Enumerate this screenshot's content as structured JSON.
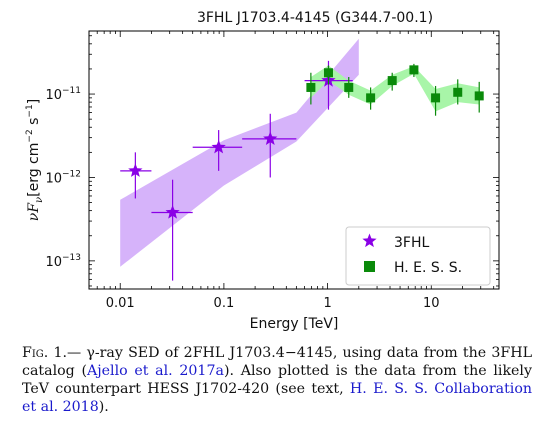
{
  "chart_data": {
    "type": "scatter",
    "title": "3FHL J1703.4-4145 (G344.7-00.1)",
    "xlabel": "Energy [TeV]",
    "ylabel_main": "νF",
    "ylabel_sub": "ν",
    "ylabel_units": "[erg cm",
    "ylabel_exp1": "−2",
    "ylabel_mid": " s",
    "ylabel_exp2": "−1",
    "ylabel_end": "]",
    "xscale": "log",
    "yscale": "log",
    "xlim": [
      0.005,
      45
    ],
    "ylim": [
      4.6e-14,
      5.7e-11
    ],
    "xticks": [
      {
        "value": 0.01,
        "label": "0.01"
      },
      {
        "value": 0.1,
        "label": "0.1"
      },
      {
        "value": 1,
        "label": "1"
      },
      {
        "value": 10,
        "label": "10"
      }
    ],
    "yticks": [
      {
        "value": 1e-13,
        "base": "10",
        "exp": "−13"
      },
      {
        "value": 1e-12,
        "base": "10",
        "exp": "−12"
      },
      {
        "value": 1e-11,
        "base": "10",
        "exp": "−11"
      }
    ],
    "legend": {
      "position": "lower-right",
      "entries": [
        {
          "label": "3FHL",
          "marker": "star",
          "color": "#8a00e6"
        },
        {
          "label": "H. E. S. S.",
          "marker": "square",
          "color": "#0a8a0a"
        }
      ]
    },
    "series": [
      {
        "name": "3FHL",
        "color": "#8a00e6",
        "marker": "star",
        "points": [
          {
            "x": 0.014,
            "y": 1.2e-12,
            "xerr": [
              0.01,
              0.02
            ],
            "yerr": [
              5.6e-13,
              2e-12
            ]
          },
          {
            "x": 0.032,
            "y": 3.8e-13,
            "xerr": [
              0.02,
              0.05
            ],
            "yerr": [
              5.8e-14,
              9.4e-13
            ]
          },
          {
            "x": 0.089,
            "y": 2.3e-12,
            "xerr": [
              0.05,
              0.15
            ],
            "yerr": [
              1.2e-12,
              3.7e-12
            ]
          },
          {
            "x": 0.28,
            "y": 2.9e-12,
            "xerr": [
              0.15,
              0.5
            ],
            "yerr": [
              1e-12,
              5.8e-12
            ]
          },
          {
            "x": 1.02,
            "y": 1.45e-11,
            "xerr": [
              0.6,
              1.75
            ],
            "yerr": [
              6.5e-12,
              2.5e-11
            ]
          }
        ]
      },
      {
        "name": "H. E. S. S.",
        "color": "#0a8a0a",
        "marker": "square",
        "points": [
          {
            "x": 0.69,
            "y": 1.2e-11,
            "yerr": [
              7.5e-12,
              1.8e-11
            ]
          },
          {
            "x": 1.02,
            "y": 1.8e-11,
            "yerr": [
              1.3e-11,
              2.2e-11
            ]
          },
          {
            "x": 1.6,
            "y": 1.2e-11,
            "yerr": [
              9e-12,
              1.6e-11
            ]
          },
          {
            "x": 2.6,
            "y": 9e-12,
            "yerr": [
              6.5e-12,
              1.2e-11
            ]
          },
          {
            "x": 4.2,
            "y": 1.45e-11,
            "yerr": [
              1.1e-11,
              1.8e-11
            ]
          },
          {
            "x": 6.8,
            "y": 1.95e-11,
            "yerr": [
              1.6e-11,
              2.3e-11
            ]
          },
          {
            "x": 11,
            "y": 9e-12,
            "yerr": [
              5.5e-12,
              1.25e-11
            ]
          },
          {
            "x": 18,
            "y": 1.05e-11,
            "yerr": [
              7.5e-12,
              1.5e-11
            ]
          },
          {
            "x": 29,
            "y": 9.5e-12,
            "yerr": [
              6e-12,
              1.4e-11
            ]
          }
        ]
      }
    ],
    "bands": [
      {
        "name": "3FHL model band",
        "color": "#d6b3fa",
        "upper": [
          [
            0.01,
            5.4e-13
          ],
          [
            0.1,
            2.8e-12
          ],
          [
            0.5,
            6e-12
          ],
          [
            2,
            4.6e-11
          ]
        ],
        "lower": [
          [
            2,
            1.7e-11
          ],
          [
            0.5,
            2.7e-12
          ],
          [
            0.1,
            8e-13
          ],
          [
            0.01,
            8.5e-14
          ]
        ]
      },
      {
        "name": "H.E.S.S. band",
        "color": "#a8f5a8",
        "upper": [
          [
            0.69,
            1.6e-11
          ],
          [
            1.02,
            2.2e-11
          ],
          [
            1.6,
            1.45e-11
          ],
          [
            2.6,
            1.1e-11
          ],
          [
            4.2,
            1.7e-11
          ],
          [
            6.8,
            2.15e-11
          ],
          [
            11,
            1.15e-11
          ],
          [
            18,
            1.35e-11
          ],
          [
            29,
            1.2e-11
          ]
        ],
        "lower": [
          [
            29,
            7.5e-12
          ],
          [
            18,
            8e-12
          ],
          [
            11,
            6.2e-12
          ],
          [
            6.8,
            1.75e-11
          ],
          [
            4.2,
            1.25e-11
          ],
          [
            2.6,
            7.5e-12
          ],
          [
            1.6,
            9.8e-12
          ],
          [
            1.02,
            1.45e-11
          ],
          [
            0.69,
            9e-12
          ]
        ]
      }
    ]
  },
  "caption": {
    "label": "Fig. 1.",
    "text_1": "— γ-ray SED of 2FHL J1703.4−4145, using data from the 3FHL catalog (",
    "cite_1": "Ajello et al. 2017a",
    "text_2": "). Also plotted is the data from the likely TeV counterpart HESS J1702-420 (see text, ",
    "cite_2": "H. E. S. S. Collaboration et al. 2018",
    "text_3": ")."
  }
}
